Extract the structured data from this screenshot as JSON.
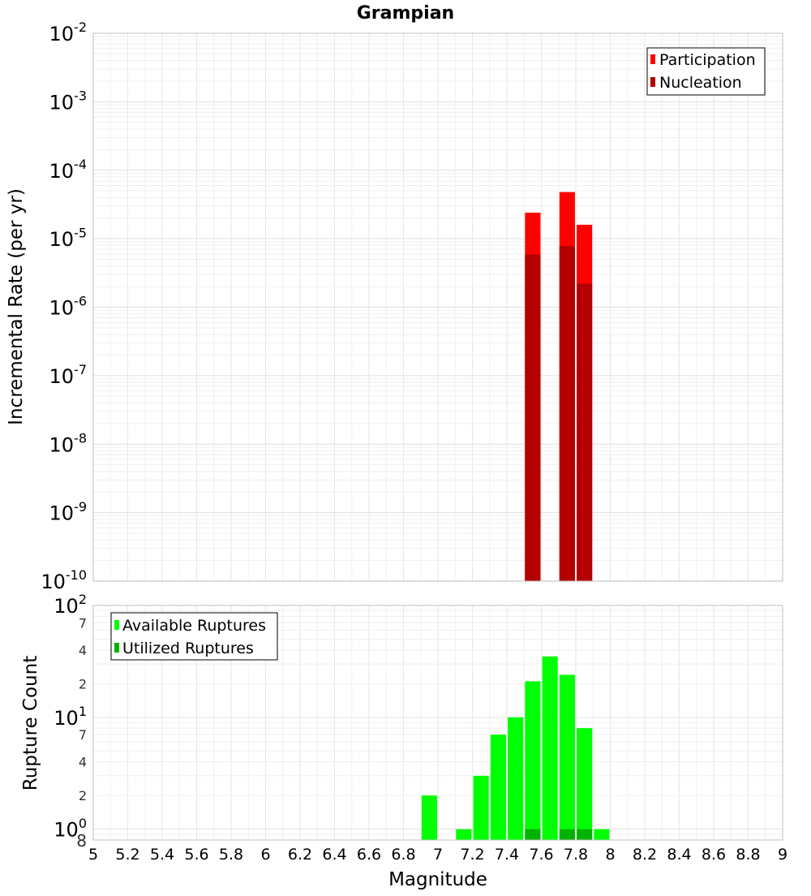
{
  "chart_data": [
    {
      "type": "bar",
      "title": "Grampian",
      "ylabel": "Incremental Rate (per yr)",
      "yscale": "log",
      "ylim": [
        1e-10,
        0.01
      ],
      "xlim": [
        5,
        9
      ],
      "bar_width": 0.09,
      "y_tick_labels": [
        {
          "value": 1e-10,
          "base": "10",
          "exp": "-10"
        },
        {
          "value": 1e-09,
          "base": "10",
          "exp": "-9"
        },
        {
          "value": 1e-08,
          "base": "10",
          "exp": "-8"
        },
        {
          "value": 1e-07,
          "base": "10",
          "exp": "-7"
        },
        {
          "value": 1e-06,
          "base": "10",
          "exp": "-6"
        },
        {
          "value": 1e-05,
          "base": "10",
          "exp": "-5"
        },
        {
          "value": 0.0001,
          "base": "10",
          "exp": "-4"
        },
        {
          "value": 0.001,
          "base": "10",
          "exp": "-3"
        },
        {
          "value": 0.01,
          "base": "10",
          "exp": "-2"
        }
      ],
      "legend": {
        "placement": "top-right"
      },
      "series": [
        {
          "name": "Participation",
          "color": "#ff0000",
          "x": [
            7.55,
            7.75,
            7.85
          ],
          "values": [
            2.4e-05,
            4.8e-05,
            1.6e-05
          ]
        },
        {
          "name": "Nucleation",
          "color": "#b30000",
          "x": [
            7.55,
            7.75,
            7.85
          ],
          "values": [
            5.9e-06,
            7.8e-06,
            2.2e-06
          ]
        }
      ],
      "grid": true
    },
    {
      "type": "bar",
      "xlabel": "Magnitude",
      "ylabel": "Rupture Count",
      "yscale": "log",
      "ylim": [
        0.8,
        100
      ],
      "xlim": [
        5,
        9
      ],
      "bar_width": 0.09,
      "x_tick_labels": [
        "5",
        "5.2",
        "5.4",
        "5.6",
        "5.8",
        "6",
        "6.2",
        "6.4",
        "6.6",
        "6.8",
        "7",
        "7.2",
        "7.4",
        "7.6",
        "7.8",
        "8",
        "8.2",
        "8.4",
        "8.6",
        "8.8",
        "9"
      ],
      "y_tick_labels": [
        {
          "value": 1,
          "base": "10",
          "exp": "0"
        },
        {
          "value": 10,
          "base": "10",
          "exp": "1"
        },
        {
          "value": 100,
          "base": "10",
          "exp": "2"
        }
      ],
      "y_minor_labels": [
        {
          "value": 0.8,
          "label": "8"
        },
        {
          "value": 2,
          "label": "2"
        },
        {
          "value": 4,
          "label": "4"
        },
        {
          "value": 7,
          "label": "7"
        },
        {
          "value": 20,
          "label": "2"
        },
        {
          "value": 40,
          "label": "4"
        },
        {
          "value": 70,
          "label": "7"
        }
      ],
      "legend": {
        "placement": "top-left"
      },
      "series": [
        {
          "name": "Available Ruptures",
          "color": "#00ff00",
          "x": [
            6.95,
            7.15,
            7.25,
            7.35,
            7.45,
            7.55,
            7.65,
            7.75,
            7.85,
            7.95
          ],
          "values": [
            2,
            1,
            3,
            7,
            10,
            21,
            35,
            24,
            8,
            1
          ]
        },
        {
          "name": "Utilized Ruptures",
          "color": "#00b300",
          "x": [
            7.55,
            7.75,
            7.85
          ],
          "values": [
            1,
            1,
            1
          ]
        }
      ],
      "grid": true
    }
  ]
}
